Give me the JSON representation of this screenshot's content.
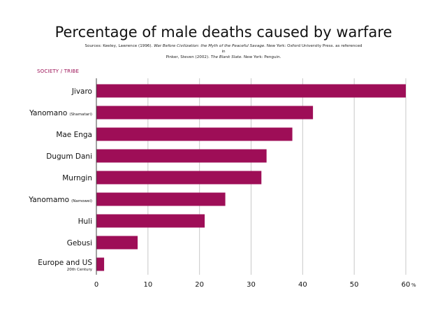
{
  "chart_data": {
    "type": "bar",
    "orientation": "horizontal",
    "title": "Percentage of male deaths caused by warfare",
    "sources": {
      "part1": "Sources: Keeley, Lawrence (1996).",
      "book1": "War Before Civilization: the Myth of the Peaceful Savage.",
      "part2": "New York: Oxford University Press.  as referenced in",
      "part3": "Pinker, Steven (2002).",
      "book2": "The Blank Slate.",
      "part4": "New York: Penguin."
    },
    "ylabel": "SOCIETY / TRIBE",
    "xunit": "%",
    "categories": [
      {
        "name": "Jivaro",
        "sub": "",
        "note": ""
      },
      {
        "name": "Yanomano",
        "sub": "(Shamatari)",
        "note": ""
      },
      {
        "name": "Mae Enga",
        "sub": "",
        "note": ""
      },
      {
        "name": "Dugum Dani",
        "sub": "",
        "note": ""
      },
      {
        "name": "Murngin",
        "sub": "",
        "note": ""
      },
      {
        "name": "Yanomamo",
        "sub": "(Namowei)",
        "note": ""
      },
      {
        "name": "Huli",
        "sub": "",
        "note": ""
      },
      {
        "name": "Gebusi",
        "sub": "",
        "note": ""
      },
      {
        "name": "Europe and US",
        "sub": "",
        "note": "20th Century"
      }
    ],
    "values": [
      60,
      42,
      38,
      33,
      32,
      25,
      21,
      8,
      1.5
    ],
    "xlim": [
      0,
      60
    ],
    "xticks": [
      0,
      10,
      20,
      30,
      40,
      50,
      60
    ],
    "grid": true,
    "colors": {
      "bar": "#9e0e57",
      "grid": "#c8c8c8",
      "axis": "#444444",
      "label_accent": "#9b0f55"
    }
  }
}
